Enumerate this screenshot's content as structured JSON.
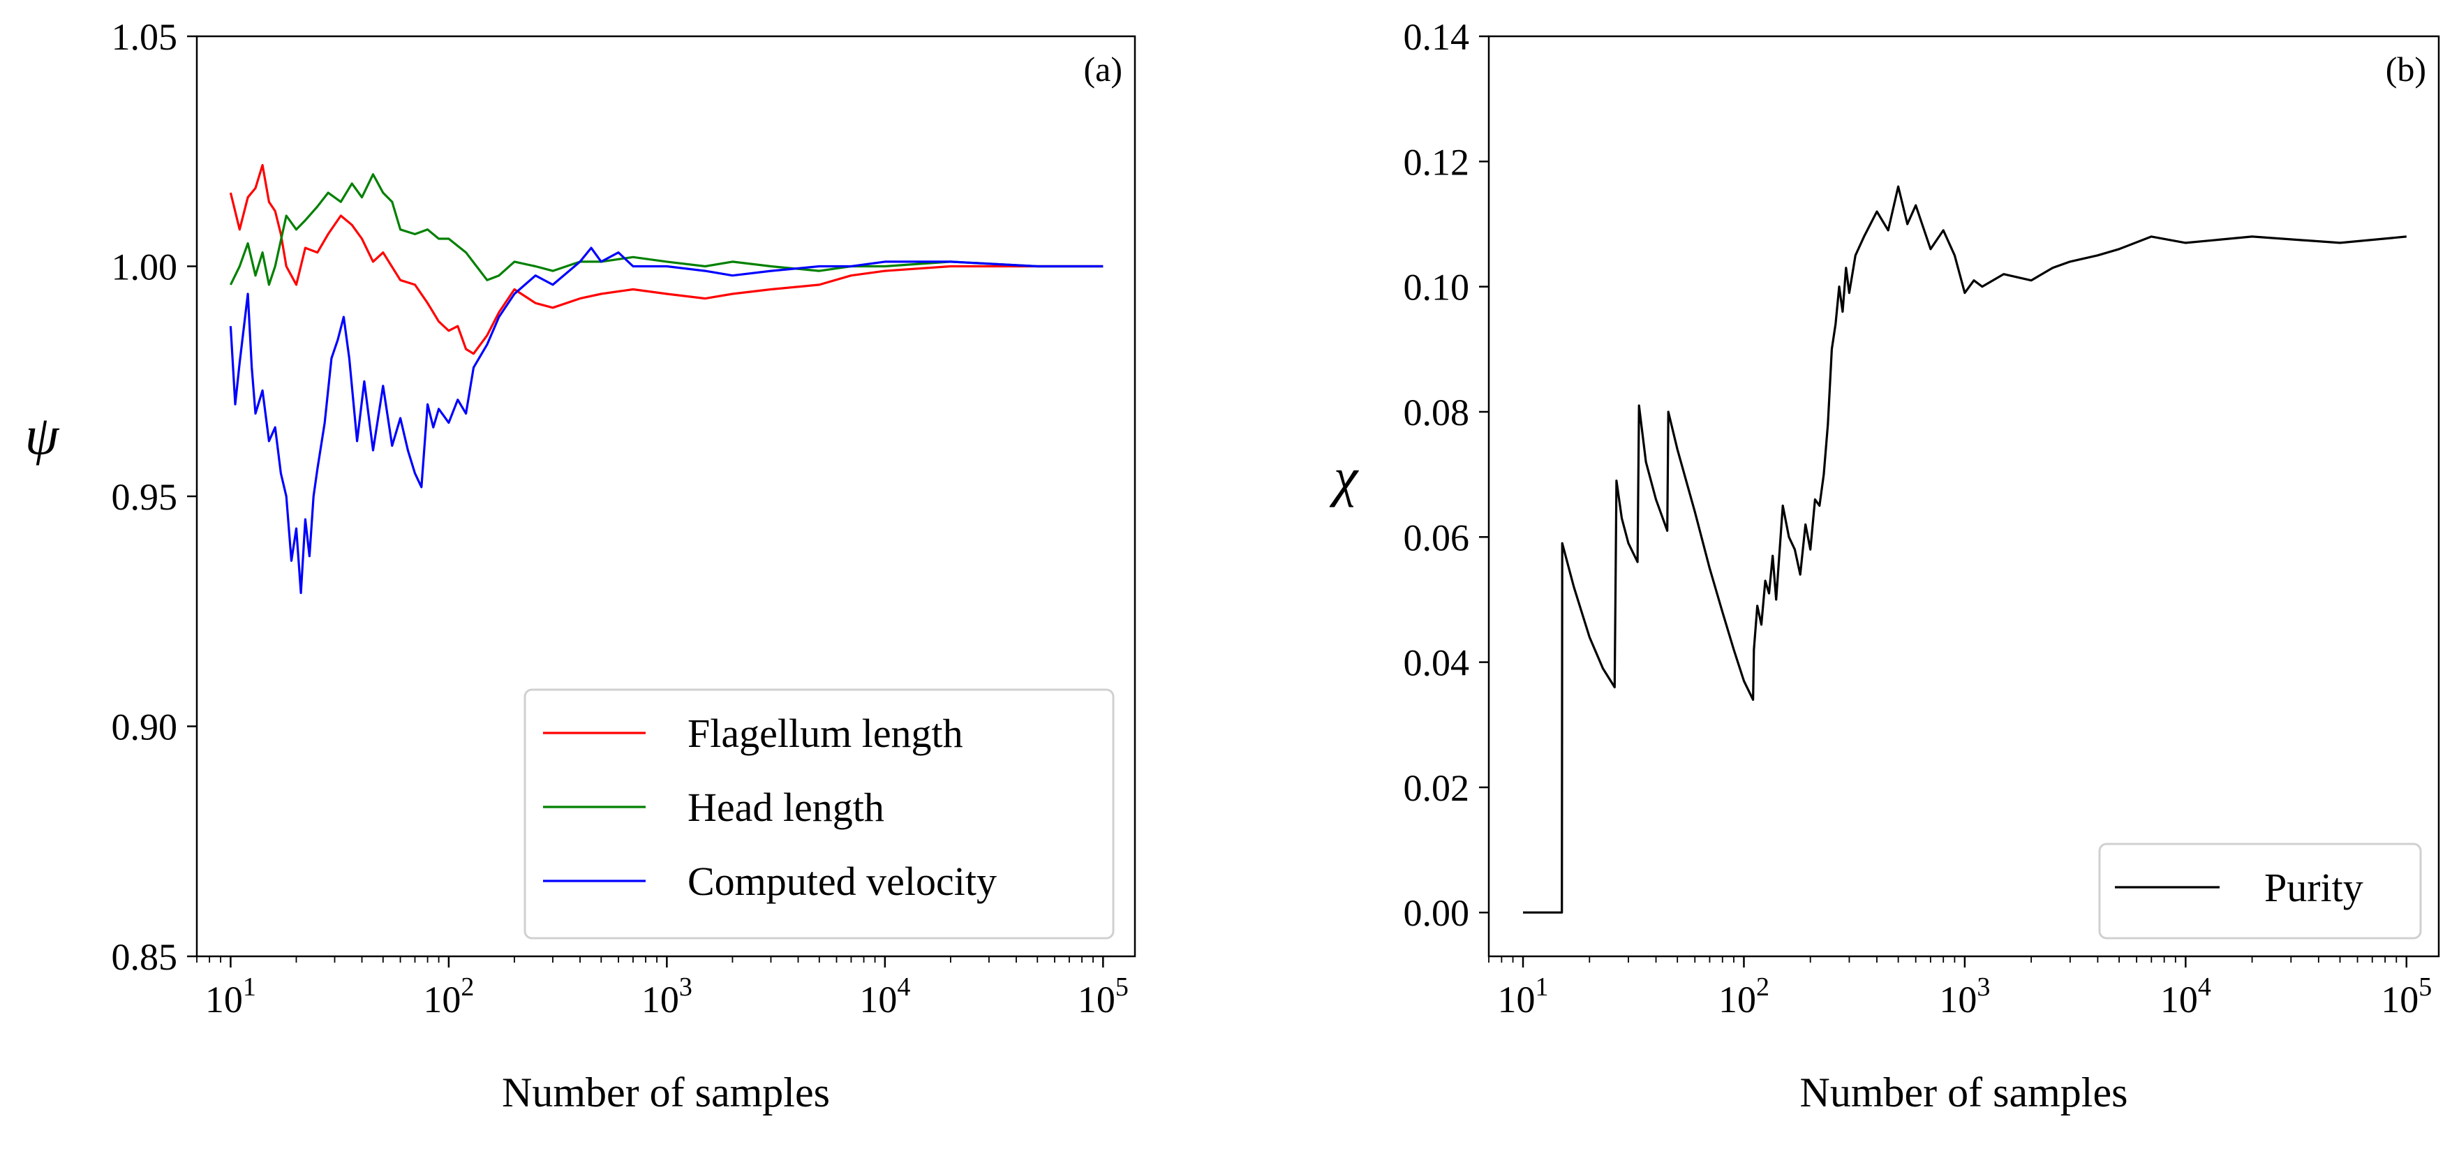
{
  "figure": {
    "panels": [
      "(a)",
      "(b)"
    ]
  },
  "chart_data": [
    {
      "type": "line",
      "panel_label": "(a)",
      "title": "",
      "xlabel": "Number of samples",
      "ylabel": "ψ",
      "xscale": "log",
      "xlim": [
        7,
        140000
      ],
      "ylim": [
        0.85,
        1.05
      ],
      "xticks": [
        10,
        100,
        1000,
        10000,
        100000
      ],
      "xtick_labels": [
        {
          "base": "10",
          "exp": "1"
        },
        {
          "base": "10",
          "exp": "2"
        },
        {
          "base": "10",
          "exp": "3"
        },
        {
          "base": "10",
          "exp": "4"
        },
        {
          "base": "10",
          "exp": "5"
        }
      ],
      "yticks": [
        0.85,
        0.9,
        0.95,
        1.0,
        1.05
      ],
      "ytick_labels": [
        "0.85",
        "0.90",
        "0.95",
        "1.00",
        "1.05"
      ],
      "legend_position": "lower-right",
      "series": [
        {
          "name": "Flagellum length",
          "color": "#ff0000",
          "x": [
            10,
            11,
            12,
            13,
            14,
            15,
            16,
            17,
            18,
            20,
            22,
            25,
            28,
            32,
            36,
            40,
            45,
            50,
            60,
            70,
            80,
            90,
            100,
            110,
            120,
            130,
            150,
            170,
            200,
            250,
            300,
            400,
            500,
            700,
            1000,
            1500,
            2000,
            3000,
            5000,
            7000,
            10000,
            20000,
            50000,
            100000
          ],
          "values": [
            1.016,
            1.008,
            1.015,
            1.017,
            1.022,
            1.014,
            1.012,
            1.007,
            1.0,
            0.996,
            1.004,
            1.003,
            1.007,
            1.011,
            1.009,
            1.006,
            1.001,
            1.003,
            0.997,
            0.996,
            0.992,
            0.988,
            0.986,
            0.987,
            0.982,
            0.981,
            0.985,
            0.99,
            0.995,
            0.992,
            0.991,
            0.993,
            0.994,
            0.995,
            0.994,
            0.993,
            0.994,
            0.995,
            0.996,
            0.998,
            0.999,
            1.0,
            1.0,
            1.0
          ]
        },
        {
          "name": "Head length",
          "color": "#008000",
          "x": [
            10,
            11,
            12,
            13,
            14,
            15,
            16,
            18,
            20,
            22,
            25,
            28,
            32,
            36,
            40,
            45,
            50,
            55,
            60,
            70,
            80,
            90,
            100,
            120,
            150,
            170,
            200,
            250,
            300,
            400,
            500,
            700,
            1000,
            1500,
            2000,
            3000,
            5000,
            7000,
            10000,
            20000,
            50000,
            100000
          ],
          "values": [
            0.996,
            1.0,
            1.005,
            0.998,
            1.003,
            0.996,
            1.0,
            1.011,
            1.008,
            1.01,
            1.013,
            1.016,
            1.014,
            1.018,
            1.015,
            1.02,
            1.016,
            1.014,
            1.008,
            1.007,
            1.008,
            1.006,
            1.006,
            1.003,
            0.997,
            0.998,
            1.001,
            1.0,
            0.999,
            1.001,
            1.001,
            1.002,
            1.001,
            1.0,
            1.001,
            1.0,
            0.999,
            1.0,
            1.0,
            1.001,
            1.0,
            1.0
          ]
        },
        {
          "name": "Computed velocity",
          "color": "#0000ff",
          "x": [
            10,
            10.5,
            11,
            12,
            12.5,
            13,
            14,
            15,
            16,
            17,
            18,
            19,
            20,
            21,
            22,
            23,
            24,
            25,
            27,
            29,
            31,
            33,
            35,
            38,
            41,
            45,
            50,
            55,
            60,
            65,
            70,
            75,
            80,
            85,
            90,
            100,
            110,
            120,
            130,
            150,
            170,
            200,
            250,
            300,
            400,
            450,
            500,
            600,
            700,
            1000,
            1500,
            2000,
            3000,
            5000,
            7000,
            10000,
            20000,
            50000,
            100000
          ],
          "values": [
            0.987,
            0.97,
            0.979,
            0.994,
            0.978,
            0.968,
            0.973,
            0.962,
            0.965,
            0.955,
            0.95,
            0.936,
            0.943,
            0.929,
            0.945,
            0.937,
            0.95,
            0.956,
            0.966,
            0.98,
            0.984,
            0.989,
            0.98,
            0.962,
            0.975,
            0.96,
            0.974,
            0.961,
            0.967,
            0.96,
            0.955,
            0.952,
            0.97,
            0.965,
            0.969,
            0.966,
            0.971,
            0.968,
            0.978,
            0.983,
            0.989,
            0.994,
            0.998,
            0.996,
            1.001,
            1.004,
            1.001,
            1.003,
            1.0,
            1.0,
            0.999,
            0.998,
            0.999,
            1.0,
            1.0,
            1.001,
            1.001,
            1.0,
            1.0
          ]
        }
      ]
    },
    {
      "type": "line",
      "panel_label": "(b)",
      "title": "",
      "xlabel": "Number of samples",
      "ylabel": "χ",
      "xscale": "log",
      "xlim": [
        7,
        140000
      ],
      "ylim": [
        -0.007,
        0.14
      ],
      "xticks": [
        10,
        100,
        1000,
        10000,
        100000
      ],
      "xtick_labels": [
        {
          "base": "10",
          "exp": "1"
        },
        {
          "base": "10",
          "exp": "2"
        },
        {
          "base": "10",
          "exp": "3"
        },
        {
          "base": "10",
          "exp": "4"
        },
        {
          "base": "10",
          "exp": "5"
        }
      ],
      "yticks": [
        0.0,
        0.02,
        0.04,
        0.06,
        0.08,
        0.1,
        0.12,
        0.14
      ],
      "ytick_labels": [
        "0.00",
        "0.02",
        "0.04",
        "0.06",
        "0.08",
        "0.10",
        "0.12",
        "0.14"
      ],
      "legend_position": "lower-right",
      "series": [
        {
          "name": "Purity",
          "color": "#000000",
          "x": [
            10,
            11,
            12,
            13,
            14,
            15,
            15.05,
            17,
            20,
            23,
            26,
            26.5,
            28,
            30,
            33,
            33.5,
            36,
            40,
            45,
            45.5,
            50,
            60,
            70,
            80,
            90,
            100,
            110,
            111,
            115,
            120,
            125,
            130,
            135,
            140,
            150,
            160,
            170,
            180,
            190,
            200,
            210,
            220,
            230,
            240,
            250,
            260,
            270,
            280,
            290,
            300,
            320,
            350,
            400,
            450,
            500,
            550,
            600,
            700,
            800,
            900,
            1000,
            1100,
            1200,
            1500,
            2000,
            2500,
            3000,
            4000,
            5000,
            7000,
            10000,
            20000,
            50000,
            100000
          ],
          "values": [
            0.0,
            0.0,
            0.0,
            0.0,
            0.0,
            0.0,
            0.059,
            0.052,
            0.044,
            0.039,
            0.036,
            0.069,
            0.063,
            0.059,
            0.056,
            0.081,
            0.072,
            0.066,
            0.061,
            0.08,
            0.074,
            0.064,
            0.055,
            0.048,
            0.042,
            0.037,
            0.034,
            0.042,
            0.049,
            0.046,
            0.053,
            0.051,
            0.057,
            0.05,
            0.065,
            0.06,
            0.058,
            0.054,
            0.062,
            0.058,
            0.066,
            0.065,
            0.07,
            0.078,
            0.09,
            0.094,
            0.1,
            0.096,
            0.103,
            0.099,
            0.105,
            0.108,
            0.112,
            0.109,
            0.116,
            0.11,
            0.113,
            0.106,
            0.109,
            0.105,
            0.099,
            0.101,
            0.1,
            0.102,
            0.101,
            0.103,
            0.104,
            0.105,
            0.106,
            0.108,
            0.107,
            0.108,
            0.107,
            0.108
          ]
        }
      ]
    }
  ]
}
